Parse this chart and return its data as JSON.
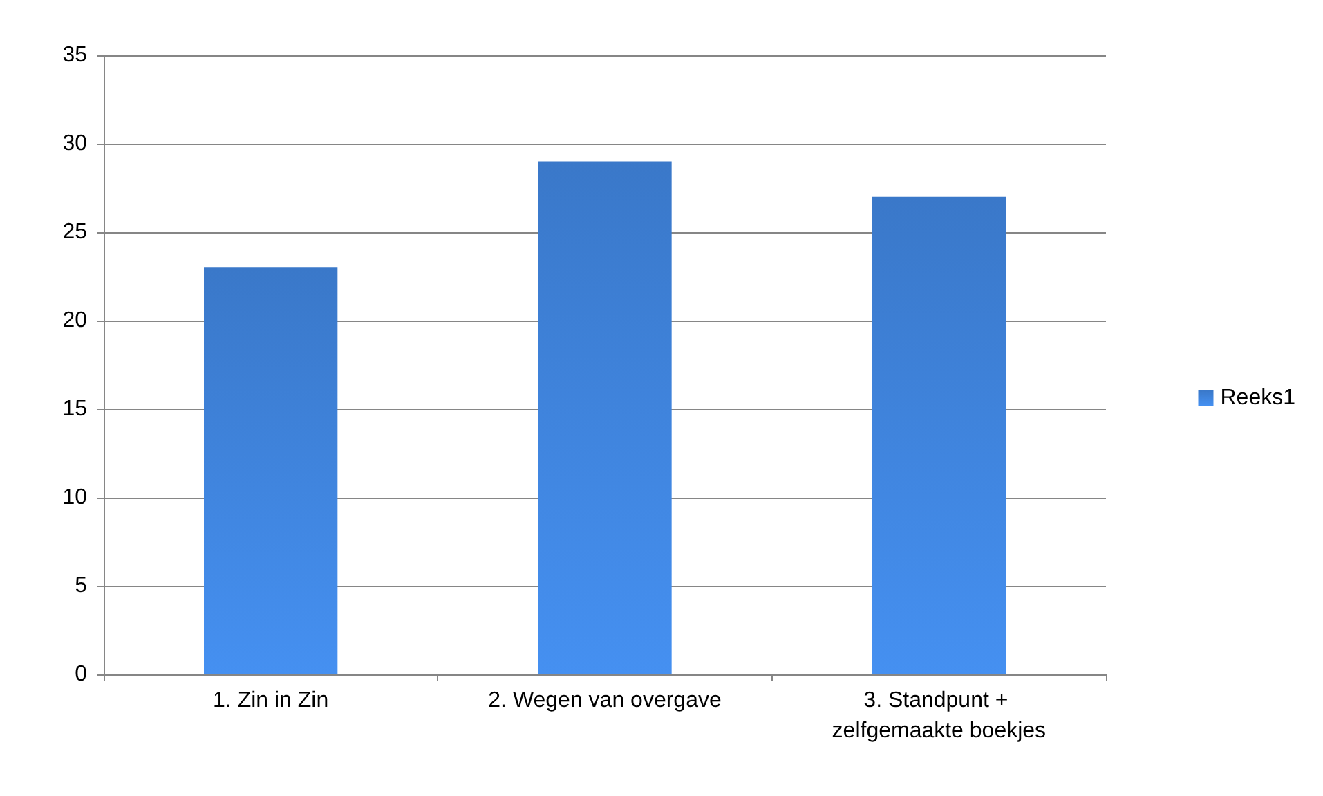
{
  "chart_data": {
    "type": "bar",
    "categories": [
      "1. Zin in Zin",
      "2. Wegen van overgave",
      "3. Standpunt + zelfgemaakte boekjes"
    ],
    "series": [
      {
        "name": "Reeks1",
        "color": "#3a78c9",
        "values": [
          23,
          29,
          27
        ]
      }
    ],
    "ylim": [
      0,
      35
    ],
    "yticks": [
      0,
      5,
      10,
      15,
      20,
      25,
      30,
      35
    ],
    "grid": "y",
    "legend": "right"
  }
}
